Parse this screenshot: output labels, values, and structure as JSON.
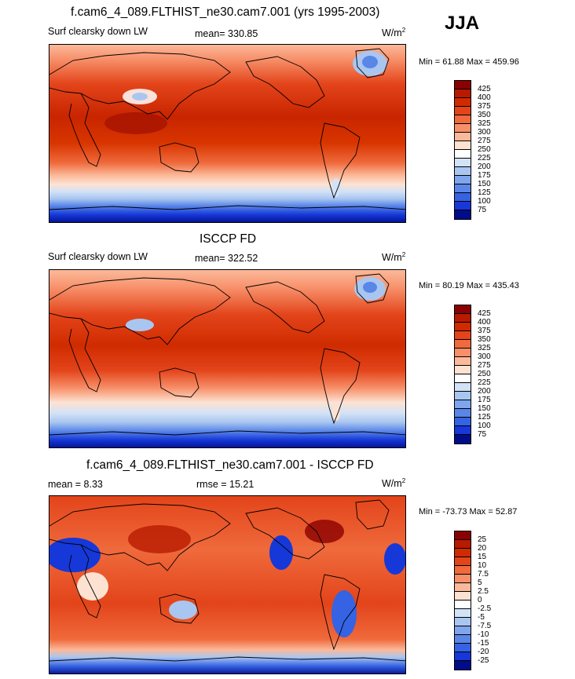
{
  "season": "JJA",
  "panels": [
    {
      "title": "f.cam6_4_089.FLTHIST_ne30.cam7.001 (yrs 1995-2003)",
      "left_label": "Surf clearsky down LW",
      "center_label": "mean= 330.85",
      "units_base": "W/m",
      "units_exp": "2",
      "minmax": "Min =  61.88 Max = 459.96",
      "colorbar_labels": [
        "425",
        "400",
        "375",
        "350",
        "325",
        "300",
        "275",
        "250",
        "225",
        "200",
        "175",
        "150",
        "125",
        "100",
        "75"
      ],
      "colors": [
        "#8b0000",
        "#b81a00",
        "#d02b00",
        "#e3441a",
        "#ef6a3c",
        "#f7906a",
        "#fbb99a",
        "#fde2d2",
        "#ffffff",
        "#d2e2f7",
        "#a9c6f0",
        "#7fa6ec",
        "#5a86e8",
        "#3563e3",
        "#1638d8",
        "#000c8a"
      ]
    },
    {
      "title": "ISCCP FD",
      "left_label": "Surf clearsky down LW",
      "center_label": "mean= 322.52",
      "units_base": "W/m",
      "units_exp": "2",
      "minmax": "Min =  80.19 Max = 435.43",
      "colorbar_labels": [
        "425",
        "400",
        "375",
        "350",
        "325",
        "300",
        "275",
        "250",
        "225",
        "200",
        "175",
        "150",
        "125",
        "100",
        "75"
      ],
      "colors": [
        "#8b0000",
        "#b81a00",
        "#d02b00",
        "#e3441a",
        "#ef6a3c",
        "#f7906a",
        "#fbb99a",
        "#fde2d2",
        "#ffffff",
        "#d2e2f7",
        "#a9c6f0",
        "#7fa6ec",
        "#5a86e8",
        "#3563e3",
        "#1638d8",
        "#000c8a"
      ]
    },
    {
      "title": "f.cam6_4_089.FLTHIST_ne30.cam7.001 - ISCCP FD",
      "left_label": "mean =   8.33",
      "center_label": "rmse =  15.21",
      "units_base": "W/m",
      "units_exp": "2",
      "minmax": "Min = -73.73 Max =  52.87",
      "colorbar_labels": [
        "25",
        "20",
        "15",
        "10",
        "7.5",
        "5",
        "2.5",
        "0",
        "-2.5",
        "-5",
        "-7.5",
        "-10",
        "-15",
        "-20",
        "-25"
      ],
      "colors": [
        "#8b0000",
        "#b81a00",
        "#d02b00",
        "#e3441a",
        "#ef6a3c",
        "#f7906a",
        "#fbb99a",
        "#fde2d2",
        "#ffffff",
        "#d2e2f7",
        "#a9c6f0",
        "#7fa6ec",
        "#5a86e8",
        "#3563e3",
        "#1638d8",
        "#000c8a"
      ]
    }
  ]
}
